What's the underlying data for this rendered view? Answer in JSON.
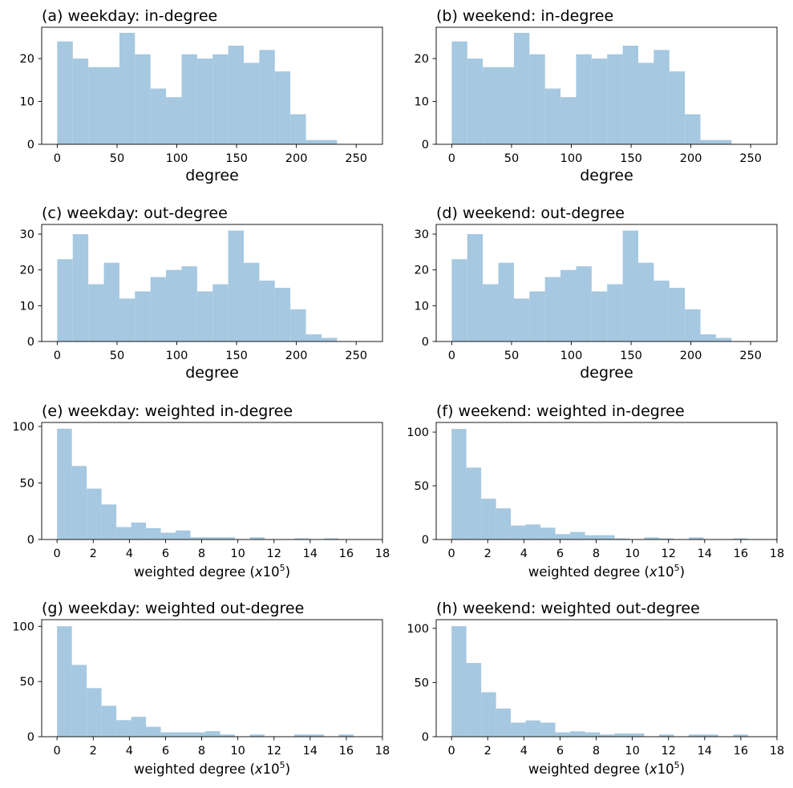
{
  "figure": {
    "bar_color": "#a6c8e0",
    "axis_color": "#000000"
  },
  "chart_data": [
    {
      "type": "bar",
      "title": "(a) weekday: in-degree",
      "xlabel": "degree",
      "ylabel": "",
      "xlim": [
        -13,
        272
      ],
      "ylim": [
        0,
        27.3
      ],
      "xticks": [
        "0",
        "50",
        "100",
        "150",
        "200",
        "250"
      ],
      "xtick_values": [
        0,
        50,
        100,
        150,
        200,
        250
      ],
      "yticks": [
        "0",
        "10",
        "20"
      ],
      "ytick_values": [
        0,
        10,
        20
      ],
      "bin_start": 0,
      "bin_width": 13,
      "values": [
        24,
        20,
        18,
        18,
        26,
        21,
        13,
        11,
        21,
        20,
        21,
        23,
        19,
        22,
        17,
        7,
        1,
        1,
        0,
        0
      ]
    },
    {
      "type": "bar",
      "title": "(b) weekend: in-degree",
      "xlabel": "degree",
      "ylabel": "",
      "xlim": [
        -13,
        272
      ],
      "ylim": [
        0,
        27.3
      ],
      "xticks": [
        "0",
        "50",
        "100",
        "150",
        "200",
        "250"
      ],
      "xtick_values": [
        0,
        50,
        100,
        150,
        200,
        250
      ],
      "yticks": [
        "0",
        "10",
        "20"
      ],
      "ytick_values": [
        0,
        10,
        20
      ],
      "bin_start": 0,
      "bin_width": 13,
      "values": [
        24,
        20,
        18,
        18,
        26,
        21,
        13,
        11,
        21,
        20,
        21,
        23,
        19,
        22,
        17,
        7,
        1,
        1,
        0,
        0
      ]
    },
    {
      "type": "bar",
      "title": "(c) weekday: out-degree",
      "xlabel": "degree",
      "ylabel": "",
      "xlim": [
        -13,
        272
      ],
      "ylim": [
        0,
        32.7
      ],
      "xticks": [
        "0",
        "50",
        "100",
        "150",
        "200",
        "250"
      ],
      "xtick_values": [
        0,
        50,
        100,
        150,
        200,
        250
      ],
      "yticks": [
        "0",
        "10",
        "20",
        "30"
      ],
      "ytick_values": [
        0,
        10,
        20,
        30
      ],
      "bin_start": 0,
      "bin_width": 13,
      "values": [
        23,
        30,
        16,
        22,
        12,
        14,
        18,
        20,
        21,
        14,
        16,
        31,
        22,
        17,
        15,
        9,
        2,
        1,
        0,
        0
      ]
    },
    {
      "type": "bar",
      "title": "(d) weekend: out-degree",
      "xlabel": "degree",
      "ylabel": "",
      "xlim": [
        -13,
        272
      ],
      "ylim": [
        0,
        32.7
      ],
      "xticks": [
        "0",
        "50",
        "100",
        "150",
        "200",
        "250"
      ],
      "xtick_values": [
        0,
        50,
        100,
        150,
        200,
        250
      ],
      "yticks": [
        "0",
        "10",
        "20",
        "30"
      ],
      "ytick_values": [
        0,
        10,
        20,
        30
      ],
      "bin_start": 0,
      "bin_width": 13,
      "values": [
        23,
        30,
        16,
        22,
        12,
        14,
        18,
        20,
        21,
        14,
        16,
        31,
        22,
        17,
        15,
        9,
        2,
        1,
        0,
        0
      ]
    },
    {
      "type": "bar",
      "title": "(e) weekday: weighted in-degree",
      "xlabel": "weighted degree (x10^5)",
      "ylabel": "",
      "xlim": [
        -0.85,
        18
      ],
      "ylim": [
        0,
        103.5
      ],
      "xticks": [
        "0",
        "2",
        "4",
        "6",
        "8",
        "10",
        "12",
        "14",
        "16",
        "18"
      ],
      "xtick_values": [
        0,
        2,
        4,
        6,
        8,
        10,
        12,
        14,
        16,
        18
      ],
      "yticks": [
        "0",
        "50",
        "100"
      ],
      "ytick_values": [
        0,
        50,
        100
      ],
      "bin_start": 0,
      "bin_width": 0.82,
      "values": [
        98,
        65,
        45,
        31,
        11,
        15,
        10,
        6,
        8,
        2,
        2,
        2,
        0,
        2,
        0,
        0,
        1,
        0,
        1,
        0
      ]
    },
    {
      "type": "bar",
      "title": "(f) weekend: weighted in-degree",
      "xlabel": "weighted degree (x10^5)",
      "ylabel": "",
      "xlim": [
        -0.85,
        18
      ],
      "ylim": [
        0,
        109
      ],
      "xticks": [
        "0",
        "2",
        "4",
        "6",
        "8",
        "10",
        "12",
        "14",
        "16",
        "18"
      ],
      "xtick_values": [
        0,
        2,
        4,
        6,
        8,
        10,
        12,
        14,
        16,
        18
      ],
      "yticks": [
        "0",
        "50",
        "100"
      ],
      "ytick_values": [
        0,
        50,
        100
      ],
      "bin_start": 0,
      "bin_width": 0.82,
      "values": [
        103,
        67,
        38,
        29,
        13,
        14,
        11,
        5,
        7,
        4,
        4,
        1,
        0,
        2,
        1,
        0,
        2,
        0,
        0,
        1
      ]
    },
    {
      "type": "bar",
      "title": "(g) weekday: weighted out-degree",
      "xlabel": "weighted degree (x10^5)",
      "ylabel": "",
      "xlim": [
        -0.85,
        18
      ],
      "ylim": [
        0,
        106
      ],
      "xticks": [
        "0",
        "2",
        "4",
        "6",
        "8",
        "10",
        "12",
        "14",
        "16",
        "18"
      ],
      "xtick_values": [
        0,
        2,
        4,
        6,
        8,
        10,
        12,
        14,
        16,
        18
      ],
      "yticks": [
        "0",
        "50",
        "100"
      ],
      "ytick_values": [
        0,
        50,
        100
      ],
      "bin_start": 0,
      "bin_width": 0.82,
      "values": [
        100,
        65,
        44,
        28,
        15,
        18,
        9,
        4,
        4,
        4,
        5,
        2,
        0,
        2,
        0,
        0,
        2,
        2,
        0,
        2
      ]
    },
    {
      "type": "bar",
      "title": "(h) weekend: weighted out-degree",
      "xlabel": "weighted degree (x10^5)",
      "ylabel": "",
      "xlim": [
        -0.85,
        18
      ],
      "ylim": [
        0,
        108
      ],
      "xticks": [
        "0",
        "2",
        "4",
        "6",
        "8",
        "10",
        "12",
        "14",
        "16",
        "18"
      ],
      "xtick_values": [
        0,
        2,
        4,
        6,
        8,
        10,
        12,
        14,
        16,
        18
      ],
      "yticks": [
        "0",
        "50",
        "100"
      ],
      "ytick_values": [
        0,
        50,
        100
      ],
      "bin_start": 0,
      "bin_width": 0.82,
      "values": [
        102,
        68,
        41,
        26,
        13,
        15,
        13,
        4,
        5,
        4,
        2,
        3,
        3,
        0,
        2,
        0,
        2,
        2,
        0,
        2
      ]
    }
  ]
}
